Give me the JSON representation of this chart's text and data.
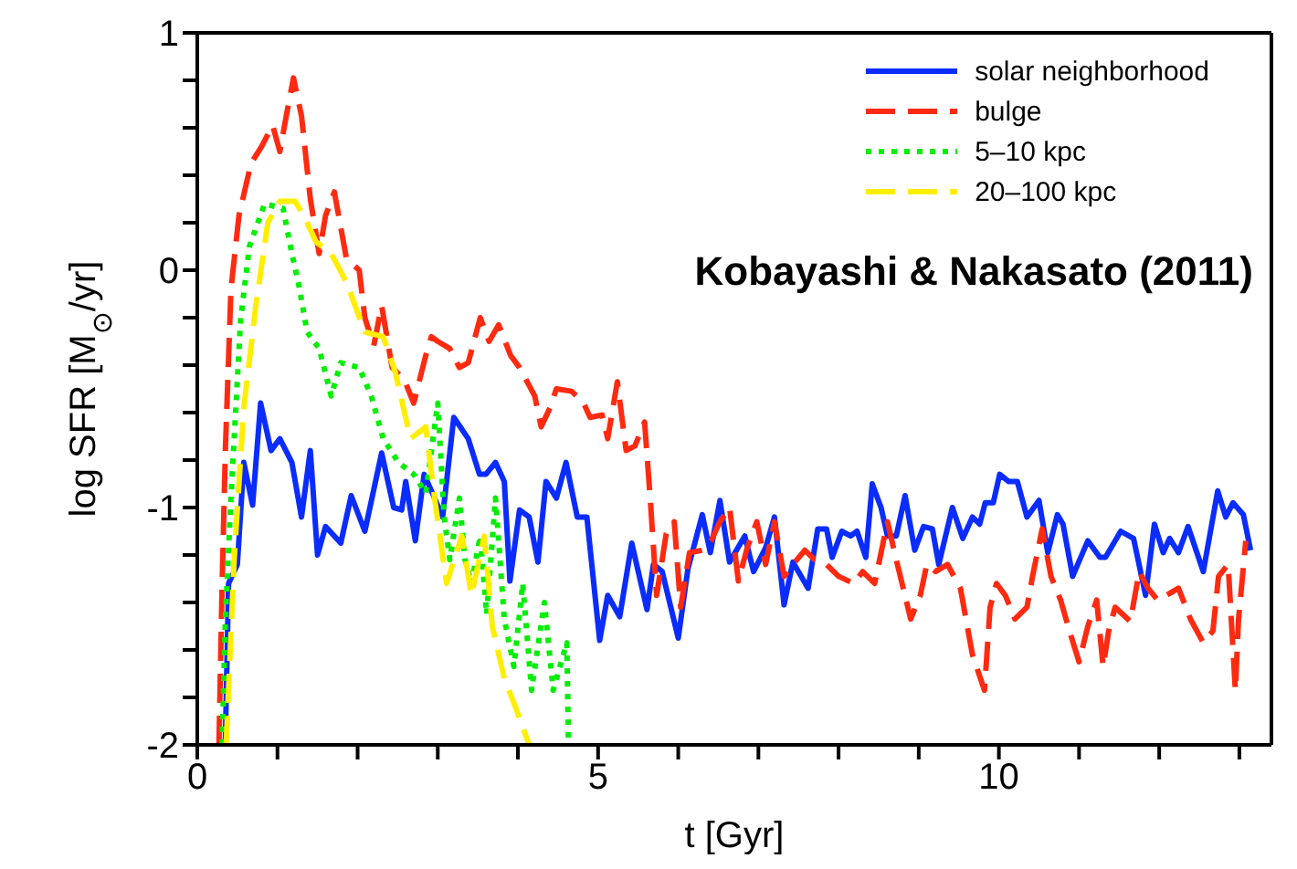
{
  "chart_data": {
    "type": "line",
    "xlabel": "t [Gyr]",
    "ylabel": "log SFR [M$_{⊙}$/yr]",
    "xlim": [
      0,
      13.4
    ],
    "ylim": [
      -2,
      1
    ],
    "xticks": [
      0,
      {
        "value": 1,
        "label": null
      },
      {
        "value": 2,
        "label": null
      },
      {
        "value": 3,
        "label": null
      },
      {
        "value": 4,
        "label": null
      },
      5,
      {
        "value": 6,
        "label": null
      },
      {
        "value": 7,
        "label": null
      },
      {
        "value": 8,
        "label": null
      },
      {
        "value": 9,
        "label": null
      },
      10,
      {
        "value": 11,
        "label": null
      },
      {
        "value": 12,
        "label": null
      },
      {
        "value": 13,
        "label": null
      }
    ],
    "yticks": [
      -2,
      {
        "value": -1.8,
        "label": null
      },
      {
        "value": -1.6,
        "label": null
      },
      {
        "value": -1.4,
        "label": null
      },
      {
        "value": -1.2,
        "label": null
      },
      -1,
      {
        "value": -0.8,
        "label": null
      },
      {
        "value": -0.6,
        "label": null
      },
      {
        "value": -0.4,
        "label": null
      },
      {
        "value": -0.2,
        "label": null
      },
      0,
      {
        "value": 0.2,
        "label": null
      },
      {
        "value": 0.4,
        "label": null
      },
      {
        "value": 0.6,
        "label": null
      },
      {
        "value": 0.8,
        "label": null
      },
      1
    ],
    "grid": false,
    "legend": "top right",
    "marker": "none",
    "annotations": [
      "Kobayashi & Nakasato (2011)"
    ],
    "series": [
      {
        "name": "solar neighborhood",
        "color": "#0a2cff",
        "line_style": "solid",
        "x": [
          0.35,
          0.39,
          0.5,
          0.58,
          0.69,
          0.79,
          0.92,
          1.03,
          1.18,
          1.3,
          1.41,
          1.5,
          1.6,
          1.79,
          1.92,
          2.09,
          2.3,
          2.45,
          2.55,
          2.6,
          2.72,
          2.83,
          2.96,
          3.06,
          3.2,
          3.38,
          3.52,
          3.6,
          3.72,
          3.83,
          3.9,
          4.02,
          4.14,
          4.25,
          4.35,
          4.48,
          4.6,
          4.74,
          4.86,
          5.02,
          5.12,
          5.27,
          5.42,
          5.61,
          5.69,
          5.8,
          6.0,
          6.12,
          6.3,
          6.4,
          6.52,
          6.64,
          6.83,
          6.94,
          7.09,
          7.2,
          7.32,
          7.43,
          7.62,
          7.74,
          7.85,
          7.92,
          8.04,
          8.15,
          8.23,
          8.34,
          8.42,
          8.53,
          8.61,
          8.72,
          8.83,
          8.95,
          9.06,
          9.17,
          9.25,
          9.42,
          9.55,
          9.67,
          9.76,
          9.83,
          9.93,
          10.01,
          10.12,
          10.23,
          10.35,
          10.5,
          10.61,
          10.73,
          10.8,
          10.92,
          11.11,
          11.26,
          11.33,
          11.52,
          11.68,
          11.83,
          11.94,
          12.05,
          12.13,
          12.24,
          12.36,
          12.55,
          12.73,
          12.83,
          12.92,
          13.05,
          13.14
        ],
        "values": [
          -1.98,
          -1.32,
          -1.24,
          -0.81,
          -0.99,
          -0.56,
          -0.76,
          -0.71,
          -0.81,
          -1.04,
          -0.76,
          -1.2,
          -1.08,
          -1.15,
          -0.95,
          -1.1,
          -0.77,
          -1.0,
          -1.01,
          -0.89,
          -1.14,
          -0.86,
          -0.96,
          -1.04,
          -0.62,
          -0.71,
          -0.86,
          -0.86,
          -0.81,
          -0.89,
          -1.31,
          -1.01,
          -1.04,
          -1.23,
          -0.89,
          -0.96,
          -0.81,
          -1.04,
          -1.04,
          -1.56,
          -1.37,
          -1.46,
          -1.15,
          -1.43,
          -1.24,
          -1.27,
          -1.55,
          -1.26,
          -1.03,
          -1.19,
          -0.97,
          -1.23,
          -1.12,
          -1.27,
          -1.17,
          -1.04,
          -1.41,
          -1.23,
          -1.34,
          -1.09,
          -1.09,
          -1.21,
          -1.1,
          -1.12,
          -1.1,
          -1.21,
          -0.9,
          -1.0,
          -1.12,
          -1.12,
          -0.95,
          -1.18,
          -1.08,
          -1.09,
          -1.24,
          -1.0,
          -1.13,
          -1.04,
          -1.07,
          -0.98,
          -0.98,
          -0.86,
          -0.89,
          -0.89,
          -1.04,
          -0.97,
          -1.19,
          -1.03,
          -1.07,
          -1.29,
          -1.14,
          -1.21,
          -1.21,
          -1.1,
          -1.13,
          -1.37,
          -1.07,
          -1.19,
          -1.13,
          -1.19,
          -1.08,
          -1.27,
          -0.93,
          -1.04,
          -0.98,
          -1.03,
          -1.18
        ]
      },
      {
        "name": "bulge",
        "color": "#ff2a10",
        "line_style": "dashed",
        "x": [
          0.27,
          0.31,
          0.35,
          0.42,
          0.52,
          0.67,
          0.8,
          0.94,
          1.03,
          1.11,
          1.2,
          1.3,
          1.41,
          1.52,
          1.6,
          1.71,
          1.79,
          1.86,
          2.02,
          2.09,
          2.2,
          2.3,
          2.43,
          2.58,
          2.7,
          2.85,
          2.92,
          3.0,
          3.15,
          3.27,
          3.38,
          3.53,
          3.64,
          3.76,
          3.91,
          4.02,
          4.21,
          4.29,
          4.4,
          4.48,
          4.67,
          4.82,
          4.9,
          5.05,
          5.12,
          5.24,
          5.35,
          5.46,
          5.58,
          5.65,
          5.73,
          5.85,
          5.95,
          6.03,
          6.14,
          6.3,
          6.41,
          6.52,
          6.64,
          6.75,
          6.86,
          6.98,
          7.09,
          7.2,
          7.32,
          7.43,
          7.58,
          7.7,
          7.85,
          8.0,
          8.19,
          8.3,
          8.45,
          8.61,
          8.72,
          8.9,
          9.02,
          9.1,
          9.21,
          9.36,
          9.52,
          9.67,
          9.82,
          9.89,
          9.97,
          10.08,
          10.2,
          10.35,
          10.42,
          10.54,
          10.65,
          10.77,
          10.88,
          11.0,
          11.11,
          11.22,
          11.3,
          11.37,
          11.45,
          11.64,
          11.75,
          11.86,
          11.98,
          12.09,
          12.24,
          12.39,
          12.55,
          12.67,
          12.74,
          12.86,
          12.95,
          12.99,
          13.08
        ],
        "values": [
          -2,
          -1.32,
          -0.76,
          -0.08,
          0.23,
          0.45,
          0.52,
          0.61,
          0.5,
          0.65,
          0.81,
          0.65,
          0.3,
          0.07,
          0.23,
          0.33,
          0.18,
          0.05,
          0,
          -0.2,
          -0.32,
          -0.15,
          -0.41,
          -0.46,
          -0.56,
          -0.36,
          -0.28,
          -0.3,
          -0.33,
          -0.41,
          -0.39,
          -0.2,
          -0.3,
          -0.23,
          -0.36,
          -0.41,
          -0.53,
          -0.66,
          -0.58,
          -0.5,
          -0.51,
          -0.56,
          -0.62,
          -0.61,
          -0.71,
          -0.47,
          -0.76,
          -0.74,
          -0.64,
          -0.96,
          -1.37,
          -1.11,
          -1.06,
          -1.42,
          -1.19,
          -1.18,
          -1.14,
          -1.06,
          -1.0,
          -1.31,
          -1.17,
          -1.06,
          -1.24,
          -1.06,
          -1.29,
          -1.24,
          -1.18,
          -1.22,
          -1.24,
          -1.29,
          -1.32,
          -1.27,
          -1.32,
          -1.06,
          -1.22,
          -1.47,
          -1.37,
          -1.24,
          -1.27,
          -1.24,
          -1.34,
          -1.62,
          -1.77,
          -1.42,
          -1.32,
          -1.37,
          -1.47,
          -1.42,
          -1.29,
          -1.09,
          -1.29,
          -1.39,
          -1.52,
          -1.65,
          -1.5,
          -1.39,
          -1.67,
          -1.52,
          -1.42,
          -1.48,
          -1.27,
          -1.34,
          -1.39,
          -1.37,
          -1.34,
          -1.47,
          -1.57,
          -1.52,
          -1.29,
          -1.24,
          -1.77,
          -1.47,
          -1.14
        ]
      },
      {
        "name": "5–10 kpc",
        "color": "#00ee00",
        "line_style": "dotted",
        "x": [
          0.31,
          0.35,
          0.42,
          0.54,
          0.65,
          0.84,
          1.07,
          1.18,
          1.26,
          1.37,
          1.52,
          1.67,
          1.79,
          2.02,
          2.17,
          2.32,
          2.51,
          2.7,
          2.85,
          3.0,
          3.08,
          3.15,
          3.27,
          3.34,
          3.42,
          3.53,
          3.61,
          3.72,
          3.83,
          3.95,
          4.06,
          4.17,
          4.33,
          4.44,
          4.61,
          4.63
        ],
        "values": [
          -2,
          -1.47,
          -0.96,
          -0.21,
          0.1,
          0.28,
          0.26,
          0.07,
          -0.05,
          -0.26,
          -0.33,
          -0.53,
          -0.39,
          -0.41,
          -0.53,
          -0.71,
          -0.81,
          -0.86,
          -0.94,
          -0.56,
          -1.04,
          -1.22,
          -0.96,
          -1.22,
          -1.32,
          -1.12,
          -1.45,
          -0.96,
          -1.47,
          -1.67,
          -1.32,
          -1.77,
          -1.4,
          -1.77,
          -1.57,
          -1.98
        ]
      },
      {
        "name": "20–100 kpc",
        "color": "#ffee00",
        "line_style": "dashed",
        "x": [
          0.36,
          0.46,
          0.58,
          0.73,
          0.88,
          1.03,
          1.22,
          1.33,
          1.48,
          1.67,
          1.86,
          2.09,
          2.32,
          2.47,
          2.66,
          2.85,
          2.96,
          3.11,
          3.3,
          3.42,
          3.58,
          3.68,
          3.83,
          3.98,
          4.14
        ],
        "values": [
          -2,
          -1.22,
          -0.58,
          -0.15,
          0.2,
          0.29,
          0.29,
          0.23,
          0.12,
          0.07,
          -0.05,
          -0.26,
          -0.28,
          -0.43,
          -0.71,
          -0.66,
          -0.96,
          -1.32,
          -1.12,
          -1.37,
          -1.12,
          -1.5,
          -1.72,
          -1.85,
          -2
        ]
      }
    ]
  }
}
